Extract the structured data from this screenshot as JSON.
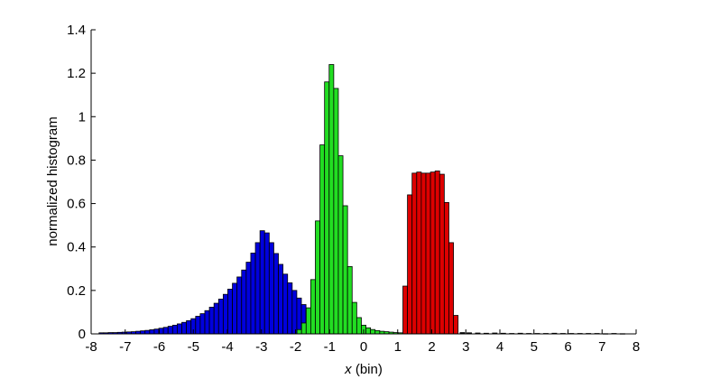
{
  "chart_data": {
    "type": "bar",
    "xlabel_var": "x",
    "xlabel_unit": " (bin)",
    "ylabel": "normalized histogram",
    "xlim": [
      -8,
      8
    ],
    "ylim": [
      0,
      1.4
    ],
    "bin_width": 0.135,
    "grid": false,
    "x_ticks": [
      -8,
      -7,
      -6,
      -5,
      -4,
      -3,
      -2,
      -1,
      0,
      1,
      2,
      3,
      4,
      5,
      6,
      7,
      8
    ],
    "x_tick_labels": [
      "-8",
      "-7",
      "-6",
      "-5",
      "-4",
      "-3",
      "-2",
      "-1",
      "0",
      "1",
      "2",
      "3",
      "4",
      "5",
      "6",
      "7",
      "8"
    ],
    "y_ticks": [
      0,
      0.2,
      0.4,
      0.6,
      0.8,
      1.0,
      1.2,
      1.4
    ],
    "y_tick_labels": [
      "0",
      "0.2",
      "0.4",
      "0.6",
      "0.8",
      "1",
      "1.2",
      "1.4"
    ],
    "series": [
      {
        "color": "#0000dd",
        "x": [
          -7.7,
          -7.565,
          -7.43,
          -7.295,
          -7.16,
          -7.025,
          -6.89,
          -6.755,
          -6.62,
          -6.485,
          -6.35,
          -6.215,
          -6.08,
          -5.945,
          -5.81,
          -5.675,
          -5.54,
          -5.405,
          -5.27,
          -5.135,
          -5.0,
          -4.865,
          -4.73,
          -4.595,
          -4.46,
          -4.325,
          -4.19,
          -4.055,
          -3.92,
          -3.785,
          -3.65,
          -3.515,
          -3.38,
          -3.245,
          -3.11,
          -2.975,
          -2.84,
          -2.705,
          -2.57,
          -2.435,
          -2.3,
          -2.165,
          -2.03,
          -1.895,
          -1.76,
          -1.625,
          -1.49,
          -1.355,
          -1.22,
          -1.085,
          -0.95,
          -0.815,
          -0.68,
          -0.545,
          -0.41,
          -0.275,
          -0.14,
          -0.005,
          0.13,
          0.265,
          0.4,
          0.535,
          0.67,
          0.805,
          0.94,
          1.075
        ],
        "values": [
          0.005,
          0.005,
          0.006,
          0.006,
          0.007,
          0.008,
          0.009,
          0.01,
          0.012,
          0.014,
          0.016,
          0.019,
          0.022,
          0.026,
          0.03,
          0.035,
          0.04,
          0.046,
          0.053,
          0.061,
          0.07,
          0.081,
          0.093,
          0.107,
          0.123,
          0.141,
          0.16,
          0.182,
          0.206,
          0.233,
          0.262,
          0.294,
          0.33,
          0.372,
          0.42,
          0.475,
          0.465,
          0.42,
          0.37,
          0.32,
          0.275,
          0.235,
          0.2,
          0.165,
          0.135,
          0.11,
          0.09,
          0.075,
          0.062,
          0.05,
          0.04,
          0.032,
          0.026,
          0.021,
          0.017,
          0.014,
          0.011,
          0.009,
          0.007,
          0.006,
          0.005,
          0.004,
          0.004,
          0.003,
          0.003,
          0.002
        ]
      },
      {
        "color": "#22dd22",
        "x": [
          -1.89,
          -1.755,
          -1.62,
          -1.485,
          -1.35,
          -1.215,
          -1.08,
          -0.945,
          -0.81,
          -0.675,
          -0.54,
          -0.405,
          -0.27,
          -0.135,
          0.0,
          0.135,
          0.27,
          0.405,
          0.54,
          0.675,
          0.81,
          0.945,
          1.08
        ],
        "values": [
          0.02,
          0.05,
          0.12,
          0.25,
          0.52,
          0.87,
          1.16,
          1.24,
          1.13,
          0.82,
          0.59,
          0.31,
          0.145,
          0.075,
          0.04,
          0.028,
          0.02,
          0.015,
          0.012,
          0.01,
          0.008,
          0.006,
          0.005
        ]
      },
      {
        "color": "#dd0000",
        "x": [
          1.22,
          1.355,
          1.49,
          1.625,
          1.76,
          1.895,
          2.03,
          2.165,
          2.3,
          2.435,
          2.57,
          2.705
        ],
        "values": [
          0.22,
          0.64,
          0.74,
          0.745,
          0.74,
          0.74,
          0.745,
          0.75,
          0.735,
          0.605,
          0.42,
          0.085
        ]
      },
      {
        "color": "#000000",
        "x": [
          2.9,
          3.1,
          3.35,
          3.6,
          3.85,
          4.1,
          4.35,
          4.6,
          4.85,
          5.1,
          5.35,
          5.6,
          5.85,
          6.1,
          6.35,
          6.6,
          6.85,
          7.1,
          7.35,
          7.6
        ],
        "values": [
          0.006,
          0.005,
          0.004,
          0.003,
          0.004,
          0.003,
          0.002,
          0.003,
          0.002,
          0.002,
          0.002,
          0.003,
          0.002,
          0.002,
          0.002,
          0.002,
          0.002,
          0.001,
          0.002,
          0.001
        ]
      }
    ]
  }
}
